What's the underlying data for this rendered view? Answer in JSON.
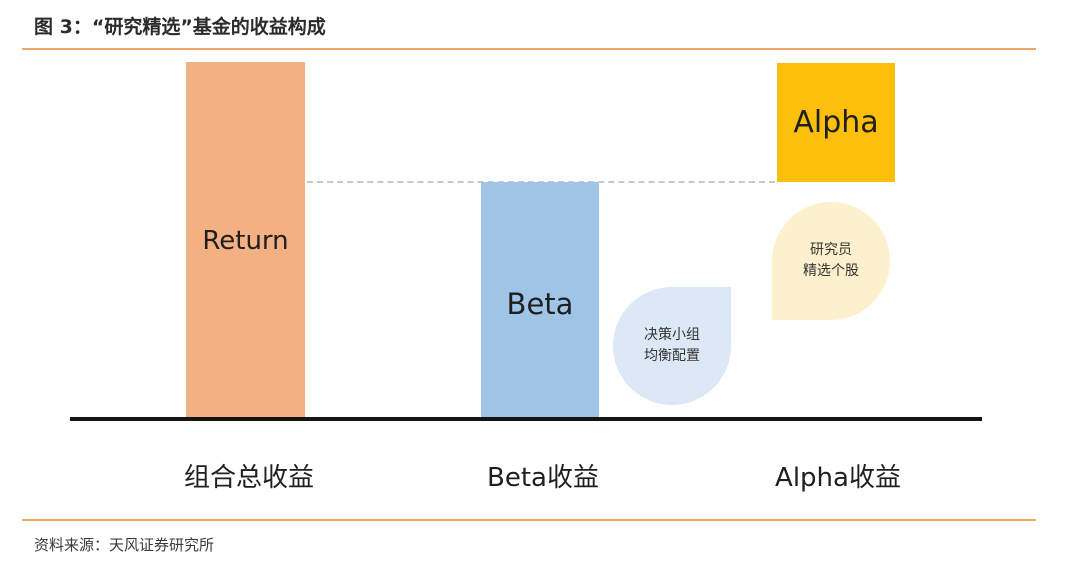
{
  "figure": {
    "title": "图 3：“研究精选”基金的收益构成",
    "source": "资料来源：天风证券研究所"
  },
  "bars": {
    "return_label": "Return",
    "beta_label": "Beta",
    "alpha_label": "Alpha"
  },
  "bubbles": {
    "beta_line1": "决策小组",
    "beta_line2": "均衡配置",
    "alpha_line1": "研究员",
    "alpha_line2": "精选个股"
  },
  "categories": {
    "total": "组合总收益",
    "beta": "Beta收益",
    "alpha": "Alpha收益"
  },
  "colors": {
    "return": "#f3b082",
    "beta": "#9fc4e6",
    "alpha": "#fcc00a",
    "beta_bubble": "#dce8f6",
    "alpha_bubble": "#fdf0cc",
    "rule": "#f0a868"
  }
}
